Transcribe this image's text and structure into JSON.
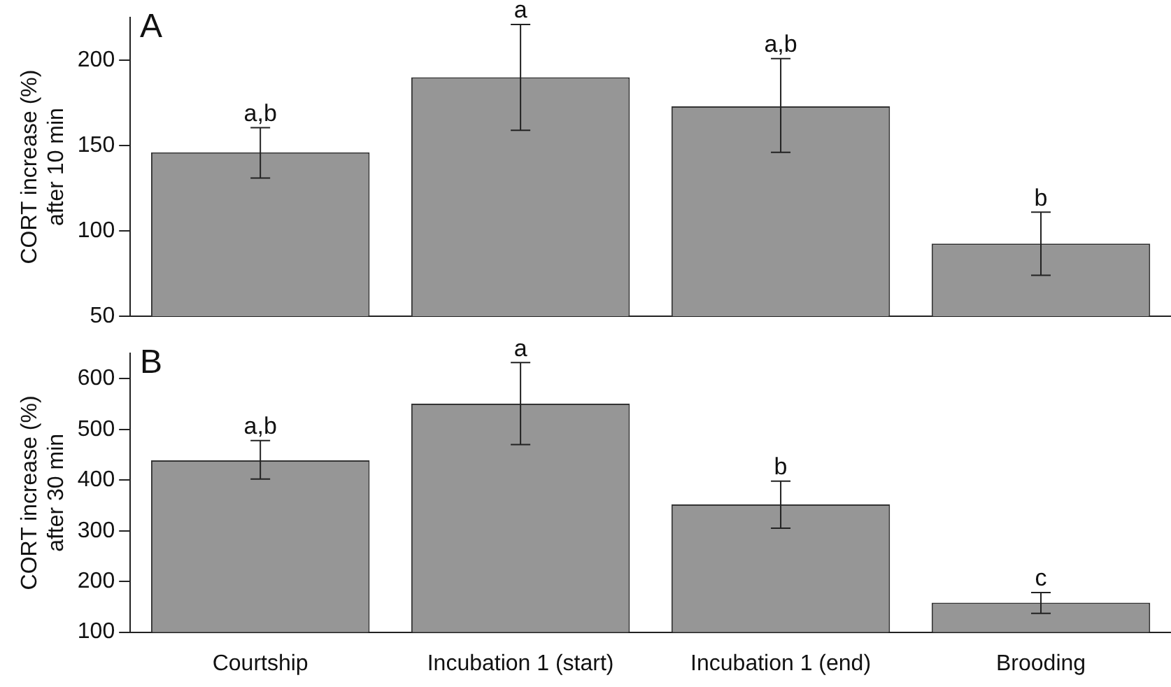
{
  "chart_data": [
    {
      "type": "bar",
      "title": "A",
      "ylabel": "CORT increase (%)\nafter 10 min",
      "categories": [
        "Courtship",
        "Incubation 1 (start)",
        "Incubation 1 (end)",
        "Brooding"
      ],
      "values": [
        146,
        190,
        173,
        92.5
      ],
      "color": "#969696",
      "errors": [
        [
          131,
          160.5
        ],
        [
          159,
          221
        ],
        [
          146,
          201
        ],
        [
          74,
          111
        ]
      ],
      "ylim": [
        50,
        225
      ],
      "yticks": [
        50,
        100,
        150,
        200
      ],
      "grid": false,
      "legend": false,
      "tick_labels": "y",
      "annotations": [
        {
          "text": "a,b",
          "x": "Courtship",
          "y": 160.5
        },
        {
          "text": "a",
          "x": "Incubation 1 (start)",
          "y": 221
        },
        {
          "text": "a,b",
          "x": "Incubation 1 (end)",
          "y": 201
        },
        {
          "text": "b",
          "x": "Brooding",
          "y": 111
        }
      ]
    },
    {
      "type": "bar",
      "title": "B",
      "ylabel": "CORT increase (%)\nafter 30 min",
      "categories": [
        "Courtship",
        "Incubation 1 (start)",
        "Incubation 1 (end)",
        "Brooding"
      ],
      "values": [
        439,
        551,
        352,
        158
      ],
      "color": "#969696",
      "errors": [
        [
          402,
          478
        ],
        [
          470,
          632
        ],
        [
          305,
          398
        ],
        [
          137,
          178
        ]
      ],
      "ylim": [
        100,
        650
      ],
      "yticks": [
        100,
        200,
        300,
        400,
        500,
        600
      ],
      "grid": false,
      "legend": false,
      "annotations": [
        {
          "text": "a,b",
          "x": "Courtship",
          "y": 478
        },
        {
          "text": "a",
          "x": "Incubation 1 (start)",
          "y": 632
        },
        {
          "text": "b",
          "x": "Incubation 1 (end)",
          "y": 398
        },
        {
          "text": "c",
          "x": "Brooding",
          "y": 178
        }
      ]
    }
  ]
}
